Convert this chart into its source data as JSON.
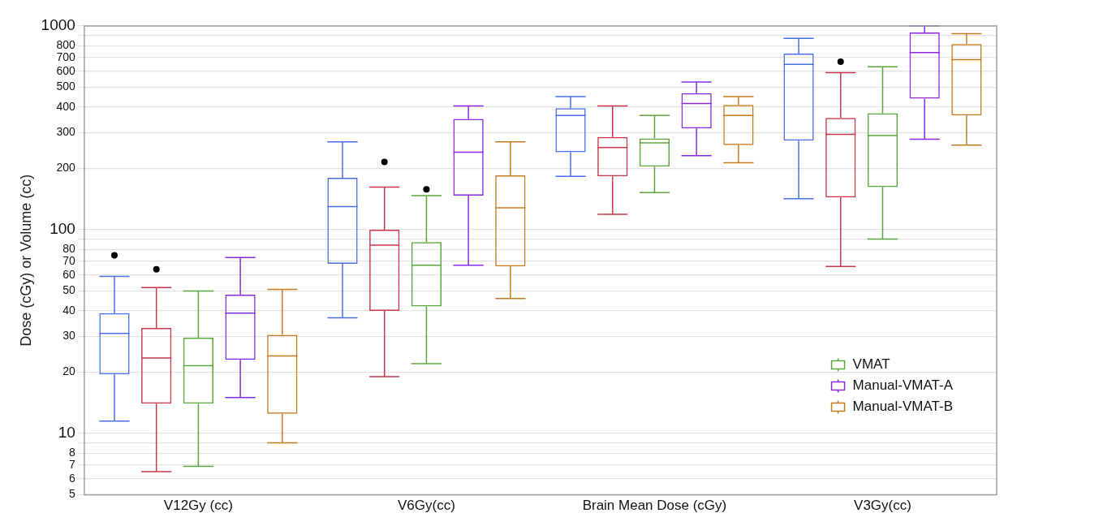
{
  "chart_data": {
    "type": "box",
    "ylabel": "Dose (cGy) or Volume (cc)",
    "categories": [
      "V12Gy (cc)",
      "V6Gy(cc)",
      "Brain Mean Dose (cGy)",
      "V3Gy(cc)"
    ],
    "log": true,
    "ylim": [
      5,
      1000
    ],
    "yticks": [
      5,
      6,
      7,
      8,
      {
        "value": 9,
        "label": null
      },
      {
        "value": 10,
        "label": "10"
      },
      20,
      30,
      40,
      50,
      60,
      70,
      80,
      {
        "value": 90,
        "label": null
      },
      {
        "value": 100,
        "label": "100"
      },
      200,
      300,
      400,
      500,
      600,
      700,
      800,
      {
        "value": 900,
        "label": null
      },
      {
        "value": 1000,
        "label": "1000"
      }
    ],
    "grid": "y",
    "legend": "bottom right",
    "series": [
      {
        "color": "#4a6fe3",
        "boxes": [
          {
            "low": 11.5,
            "q1": 19.5,
            "median": 31,
            "q3": 39,
            "high": 59,
            "outliers": [
              75
            ]
          },
          {
            "low": 37,
            "q1": 68,
            "median": 130,
            "q3": 180,
            "high": 270
          },
          {
            "low": 183,
            "q1": 240,
            "median": 364,
            "q3": 395,
            "high": 450
          },
          {
            "low": 142,
            "q1": 274,
            "median": 649,
            "q3": 732,
            "high": 869
          }
        ]
      },
      {
        "color": "#c8374a",
        "boxes": [
          {
            "low": 6.5,
            "q1": 14,
            "median": 23.5,
            "q3": 33,
            "high": 52,
            "outliers": [
              64
            ]
          },
          {
            "low": 19,
            "q1": 40,
            "median": 84,
            "q3": 100,
            "high": 162,
            "outliers": [
              215
            ]
          },
          {
            "low": 119,
            "q1": 183,
            "median": 253,
            "q3": 285,
            "high": 405
          },
          {
            "low": 66,
            "q1": 144,
            "median": 294,
            "q3": 354,
            "high": 590,
            "outliers": [
              668
            ]
          }
        ]
      },
      {
        "name": "VMAT",
        "color": "#5aa83c",
        "boxes": [
          {
            "low": 6.9,
            "q1": 14,
            "median": 21.5,
            "q3": 29.5,
            "high": 50
          },
          {
            "low": 22,
            "q1": 42,
            "median": 67,
            "q3": 87,
            "high": 147,
            "outliers": [
              158
            ]
          },
          {
            "low": 152,
            "q1": 204,
            "median": 267,
            "q3": 281,
            "high": 364
          },
          {
            "low": 90,
            "q1": 162,
            "median": 290,
            "q3": 373,
            "high": 630
          }
        ]
      },
      {
        "name": "Manual-VMAT-A",
        "color": "#8a2be2",
        "boxes": [
          {
            "low": 15,
            "q1": 23,
            "median": 39,
            "q3": 48,
            "high": 73
          },
          {
            "low": 67,
            "q1": 147,
            "median": 240,
            "q3": 350,
            "high": 405
          },
          {
            "low": 231,
            "q1": 314,
            "median": 416,
            "q3": 468,
            "high": 531
          },
          {
            "low": 278,
            "q1": 440,
            "median": 740,
            "q3": 929,
            "high": 1000
          }
        ]
      },
      {
        "name": "Manual-VMAT-B",
        "color": "#c87a1e",
        "boxes": [
          {
            "low": 9,
            "q1": 12.5,
            "median": 24,
            "q3": 30.5,
            "high": 51
          },
          {
            "low": 46,
            "q1": 66,
            "median": 128,
            "q3": 185,
            "high": 270
          },
          {
            "low": 213,
            "q1": 260,
            "median": 364,
            "q3": 410,
            "high": 450
          },
          {
            "low": 260,
            "q1": 364,
            "median": 683,
            "q3": 815,
            "high": 916
          }
        ]
      }
    ]
  }
}
